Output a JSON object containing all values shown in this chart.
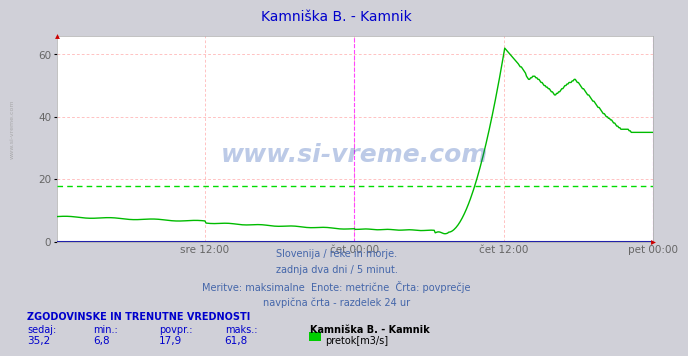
{
  "title": "Kamniška B. - Kamnik",
  "title_color": "#0000cc",
  "bg_color": "#d0d0d8",
  "plot_bg_color": "#ffffff",
  "grid_color": "#ffaaaa",
  "grid_style": "--",
  "y_ticks": [
    0,
    20,
    40,
    60
  ],
  "ylim": [
    0,
    66
  ],
  "xlim": [
    0,
    575
  ],
  "xlabel_ticks": [
    143,
    287,
    431,
    575
  ],
  "xlabel_labels": [
    "sre 12:00",
    "čet 00:00",
    "čet 12:00",
    "pet 00:00"
  ],
  "xlabel_color": "#666666",
  "line_color": "#00bb00",
  "line_width": 1.0,
  "avg_line_value": 17.9,
  "avg_line_color": "#00dd00",
  "avg_line_style": "--",
  "vline_positions": [
    287,
    575
  ],
  "vline_color": "#ff44ff",
  "vline_style": "--",
  "baseline_color": "#2222aa",
  "watermark_text": "www.si-vreme.com",
  "watermark_color": "#1144aa",
  "watermark_alpha": 0.28,
  "sidebar_text": "www.si-vreme.com",
  "sidebar_color": "#999999",
  "footer_lines": [
    "Slovenija / reke in morje.",
    "zadnja dva dni / 5 minut.",
    "Meritve: maksimalne  Enote: metrične  Črta: povprečje",
    "navpična črta - razdelek 24 ur"
  ],
  "footer_color": "#4466aa",
  "stats_header": "ZGODOVINSKE IN TRENUTNE VREDNOSTI",
  "stats_color": "#0000cc",
  "stats_labels": [
    "sedaj:",
    "min.:",
    "povpr.:",
    "maks.:"
  ],
  "stats_values": [
    "35,2",
    "6,8",
    "17,9",
    "61,8"
  ],
  "legend_station": "Kamniška B. - Kamnik",
  "legend_color": "#00cc00",
  "legend_label": "pretok[m3/s]"
}
